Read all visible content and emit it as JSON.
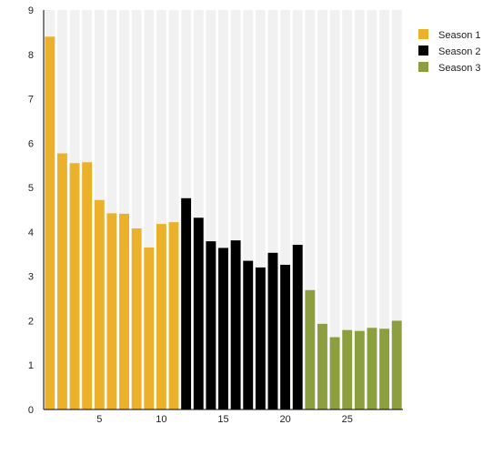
{
  "chart_data": {
    "type": "bar",
    "x": [
      1,
      2,
      3,
      4,
      5,
      6,
      7,
      8,
      9,
      10,
      11,
      12,
      13,
      14,
      15,
      16,
      17,
      18,
      19,
      20,
      21,
      22,
      23,
      24,
      25,
      26,
      27,
      28,
      29
    ],
    "values": [
      8.4,
      5.77,
      5.55,
      5.57,
      4.72,
      4.42,
      4.41,
      4.08,
      3.65,
      4.18,
      4.22,
      4.76,
      4.32,
      3.79,
      3.64,
      3.81,
      3.35,
      3.2,
      3.53,
      3.26,
      3.71,
      2.69,
      1.93,
      1.63,
      1.79,
      1.77,
      1.84,
      1.82,
      2.0
    ],
    "season_of_bar": [
      0,
      0,
      0,
      0,
      0,
      0,
      0,
      0,
      0,
      0,
      0,
      1,
      1,
      1,
      1,
      1,
      1,
      1,
      1,
      1,
      1,
      2,
      2,
      2,
      2,
      2,
      2,
      2,
      2
    ],
    "series": [
      {
        "name": "Season 1",
        "color": "#EBB12B"
      },
      {
        "name": "Season 2",
        "color": "#000000"
      },
      {
        "name": "Season 3",
        "color": "#8C9F3F"
      }
    ],
    "background_bar_color": "#F1F1F1",
    "axis_color": "#000000",
    "xlim": [
      0.5,
      29.5
    ],
    "ylim": [
      0,
      9
    ],
    "x_ticks": [
      5,
      10,
      15,
      20,
      25
    ],
    "y_ticks": [
      0,
      1,
      2,
      3,
      4,
      5,
      6,
      7,
      8,
      9
    ],
    "title": "",
    "xlabel": "",
    "ylabel": "",
    "legend_position": "top-right",
    "grid": false
  }
}
